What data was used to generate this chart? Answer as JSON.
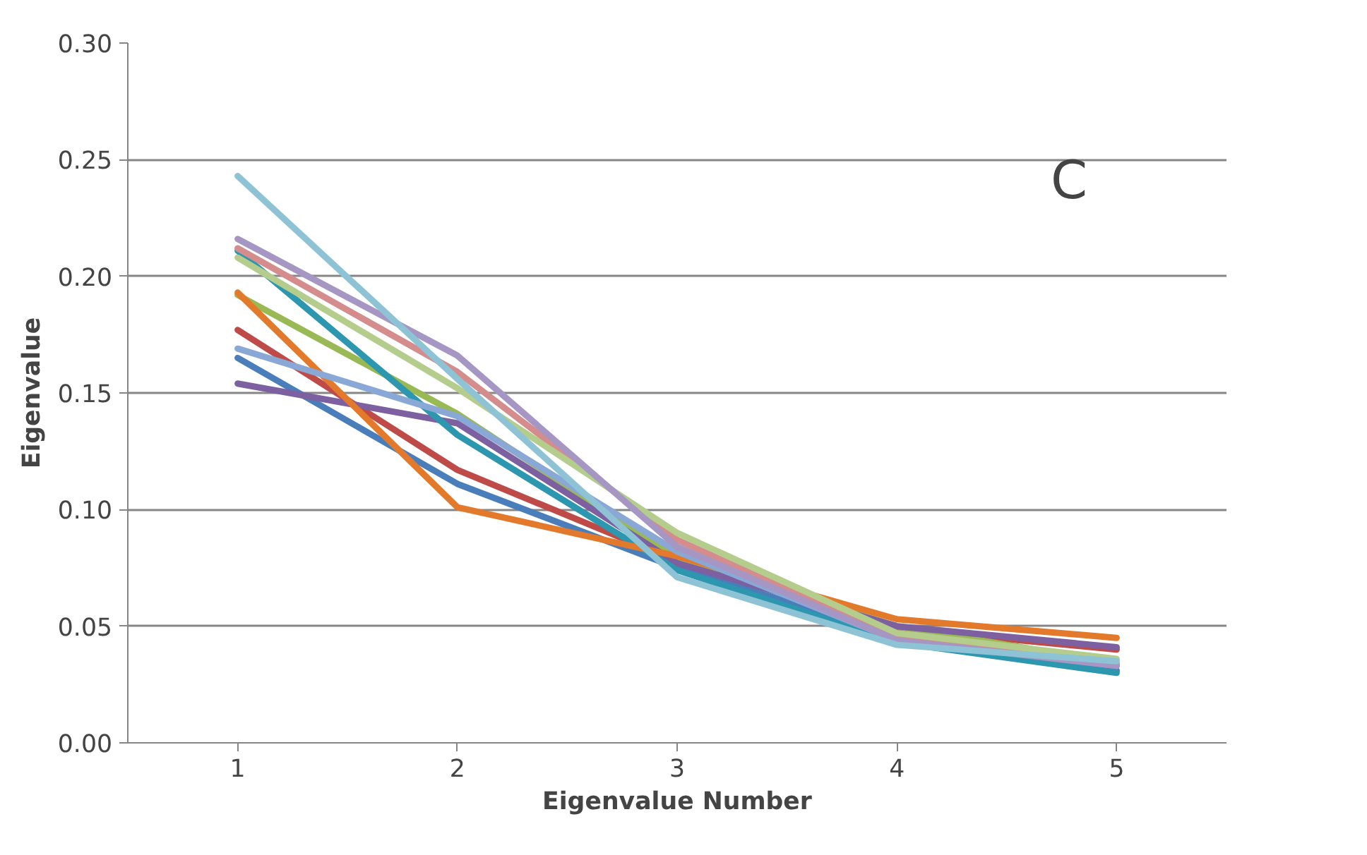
{
  "chart_data": {
    "type": "line",
    "xlabel": "Eigenvalue Number",
    "ylabel": "Eigenvalue",
    "annotations": [
      "C"
    ],
    "categories": [
      "1",
      "2",
      "3",
      "4",
      "5"
    ],
    "ylim": [
      0,
      0.3
    ],
    "yticks": [
      {
        "value": 0,
        "label": "0.00"
      },
      0.05,
      {
        "value": 0.1,
        "label": "0.10"
      },
      0.15,
      {
        "value": 0.2,
        "label": "0.20"
      },
      0.25,
      {
        "value": 0.3,
        "label": "0.30"
      }
    ],
    "grid": "y",
    "marker": "none",
    "line_style": "solid",
    "series": [
      {
        "color": "#4a7ebb",
        "values": [
          0.165,
          0.111,
          0.075,
          0.046,
          0.031
        ]
      },
      {
        "color": "#be4b48",
        "values": [
          0.177,
          0.117,
          0.078,
          0.049,
          0.04
        ]
      },
      {
        "color": "#98b954",
        "values": [
          0.192,
          0.141,
          0.079,
          0.05,
          0.034
        ]
      },
      {
        "color": "#7d60a0",
        "values": [
          0.154,
          0.137,
          0.077,
          0.05,
          0.041
        ]
      },
      {
        "color": "#2e97b0",
        "values": [
          0.211,
          0.132,
          0.074,
          0.043,
          0.03
        ]
      },
      {
        "color": "#e3792a",
        "values": [
          0.193,
          0.101,
          0.08,
          0.053,
          0.045
        ]
      },
      {
        "color": "#8aa8d6",
        "values": [
          0.169,
          0.14,
          0.082,
          0.044,
          0.034
        ]
      },
      {
        "color": "#d48c8c",
        "values": [
          0.212,
          0.159,
          0.087,
          0.045,
          0.033
        ]
      },
      {
        "color": "#b4cd8c",
        "values": [
          0.208,
          0.152,
          0.09,
          0.047,
          0.036
        ]
      },
      {
        "color": "#a696c4",
        "values": [
          0.216,
          0.166,
          0.084,
          0.044,
          0.033
        ]
      },
      {
        "color": "#8ec3d6",
        "values": [
          0.243,
          0.156,
          0.071,
          0.042,
          0.035
        ]
      }
    ]
  }
}
